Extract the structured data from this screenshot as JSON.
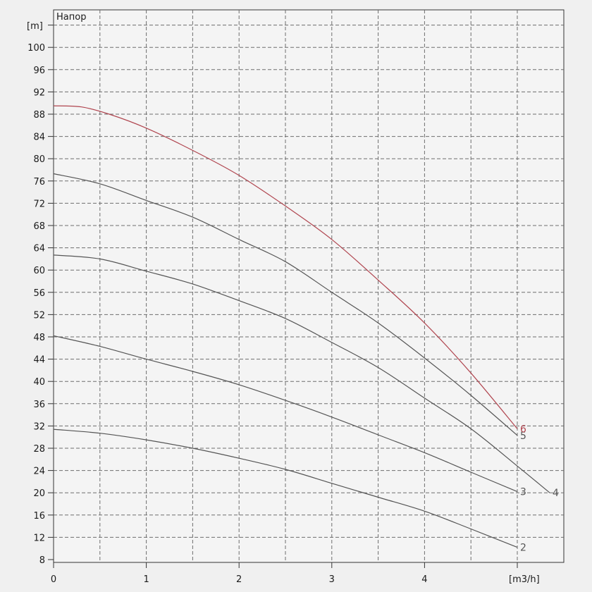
{
  "chart_data": {
    "type": "line",
    "title": "Напор",
    "ylabel": "[m]",
    "xlabel": "[m3/h]",
    "xlim": [
      0,
      5.4
    ],
    "ylim": [
      8,
      104
    ],
    "x_ticks": [
      0,
      1,
      2,
      3,
      4
    ],
    "y_ticks": [
      8,
      12,
      16,
      20,
      24,
      28,
      32,
      36,
      40,
      44,
      48,
      52,
      56,
      60,
      64,
      68,
      72,
      76,
      80,
      84,
      88,
      92,
      96,
      100
    ],
    "grid": true,
    "colors": {
      "default": "#555555",
      "highlight": "#b0454f",
      "grid": "#6e6e6e"
    },
    "series": [
      {
        "name": "2",
        "color": "#555555",
        "x": [
          0,
          0.5,
          1,
          1.5,
          2,
          2.5,
          3,
          3.5,
          4,
          4.5,
          5
        ],
        "y": [
          31.4,
          30.7,
          29.5,
          28.0,
          26.2,
          24.2,
          21.7,
          19.2,
          16.7,
          13.5,
          10.2
        ]
      },
      {
        "name": "3",
        "color": "#555555",
        "x": [
          0,
          0.5,
          1,
          1.5,
          2,
          2.5,
          3,
          3.5,
          4,
          4.5,
          5
        ],
        "y": [
          48.2,
          46.3,
          44.0,
          41.8,
          39.4,
          36.6,
          33.6,
          30.4,
          27.2,
          23.7,
          20.2
        ]
      },
      {
        "name": "4",
        "color": "#555555",
        "x": [
          0,
          0.5,
          1,
          1.5,
          2,
          2.5,
          3,
          3.5,
          4,
          4.5,
          5,
          5.35
        ],
        "y": [
          62.7,
          62.0,
          59.8,
          57.5,
          54.5,
          51.3,
          47.0,
          42.5,
          37.0,
          31.5,
          24.8,
          20.0
        ]
      },
      {
        "name": "5",
        "color": "#555555",
        "x": [
          0,
          0.5,
          1,
          1.5,
          2,
          2.5,
          3,
          3.5,
          4,
          4.5,
          5
        ],
        "y": [
          77.3,
          75.5,
          72.5,
          69.5,
          65.5,
          61.5,
          56.0,
          50.5,
          44.2,
          37.5,
          30.3
        ]
      },
      {
        "name": "6",
        "color": "#b0454f",
        "x": [
          0,
          0.3,
          0.6,
          1,
          1.5,
          2,
          2.5,
          3,
          3.5,
          4,
          4.5,
          5
        ],
        "y": [
          89.5,
          89.3,
          88.0,
          85.5,
          81.5,
          77.0,
          71.5,
          65.5,
          58.2,
          50.5,
          41.5,
          31.5
        ]
      }
    ]
  }
}
